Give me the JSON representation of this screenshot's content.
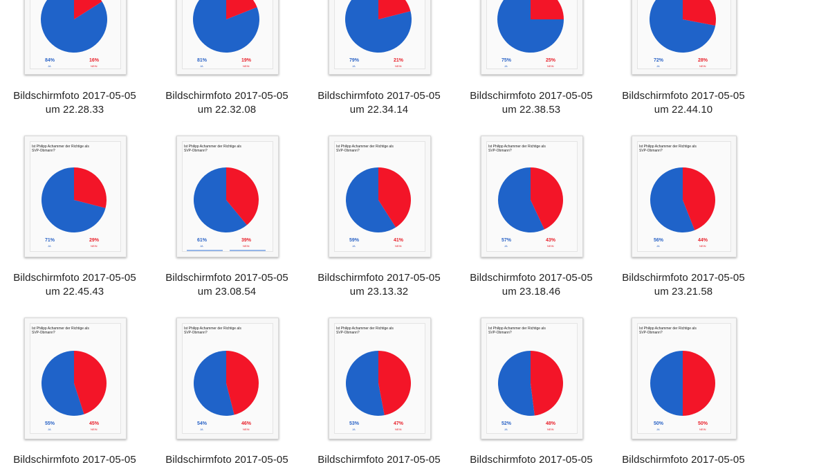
{
  "colors": {
    "ja": "#1f63c9",
    "nein": "#f31528",
    "label_ja": "#2a63c6",
    "label_nein": "#e8202a"
  },
  "question": "Ist Philipp Achammer der Richtige als SVP-Obmann?",
  "ja_label": "JA",
  "nein_label": "NEIN",
  "files": [
    {
      "line1": "Bildschirmfoto 2017-05-05",
      "line2": "um 22.28.33",
      "ja": 84,
      "nein": 16,
      "ja_text": "84%",
      "nein_text": "16%",
      "question_visible": false
    },
    {
      "line1": "Bildschirmfoto 2017-05-05",
      "line2": "um 22.32.08",
      "ja": 81,
      "nein": 19,
      "ja_text": "81%",
      "nein_text": "19%",
      "question_visible": false
    },
    {
      "line1": "Bildschirmfoto 2017-05-05",
      "line2": "um 22.34.14",
      "ja": 79,
      "nein": 21,
      "ja_text": "79%",
      "nein_text": "21%",
      "question_visible": false
    },
    {
      "line1": "Bildschirmfoto 2017-05-05",
      "line2": "um 22.38.53",
      "ja": 75,
      "nein": 25,
      "ja_text": "75%",
      "nein_text": "25%",
      "question_visible": false
    },
    {
      "line1": "Bildschirmfoto 2017-05-05",
      "line2": "um 22.44.10",
      "ja": 72,
      "nein": 28,
      "ja_text": "72%",
      "nein_text": "28%",
      "question_visible": false
    },
    {
      "line1": "Bildschirmfoto 2017-05-05",
      "line2": "um 22.45.43",
      "ja": 71,
      "nein": 29,
      "ja_text": "71%",
      "nein_text": "29%",
      "question_visible": true
    },
    {
      "line1": "Bildschirmfoto 2017-05-05",
      "line2": "um 23.08.54",
      "ja": 61,
      "nein": 39,
      "ja_text": "61%",
      "nein_text": "39%",
      "question_visible": true
    },
    {
      "line1": "Bildschirmfoto 2017-05-05",
      "line2": "um 23.13.32",
      "ja": 59,
      "nein": 41,
      "ja_text": "59%",
      "nein_text": "41%",
      "question_visible": true
    },
    {
      "line1": "Bildschirmfoto 2017-05-05",
      "line2": "um 23.18.46",
      "ja": 57,
      "nein": 43,
      "ja_text": "57%",
      "nein_text": "43%",
      "question_visible": true
    },
    {
      "line1": "Bildschirmfoto 2017-05-05",
      "line2": "um 23.21.58",
      "ja": 56,
      "nein": 44,
      "ja_text": "56%",
      "nein_text": "44%",
      "question_visible": true
    },
    {
      "line1": "Bildschirmfoto 2017-05-05",
      "line2": "",
      "ja": 55,
      "nein": 45,
      "ja_text": "55%",
      "nein_text": "45%",
      "question_visible": true
    },
    {
      "line1": "Bildschirmfoto 2017-05-05",
      "line2": "",
      "ja": 54,
      "nein": 46,
      "ja_text": "54%",
      "nein_text": "46%",
      "question_visible": true
    },
    {
      "line1": "Bildschirmfoto 2017-05-05",
      "line2": "",
      "ja": 53,
      "nein": 47,
      "ja_text": "53%",
      "nein_text": "47%",
      "question_visible": true
    },
    {
      "line1": "Bildschirmfoto 2017-05-05",
      "line2": "",
      "ja": 52,
      "nein": 48,
      "ja_text": "52%",
      "nein_text": "48%",
      "question_visible": true
    },
    {
      "line1": "Bildschirmfoto 2017-05-05",
      "line2": "",
      "ja": 50,
      "nein": 50,
      "ja_text": "50%",
      "nein_text": "50%",
      "question_visible": true
    }
  ]
}
